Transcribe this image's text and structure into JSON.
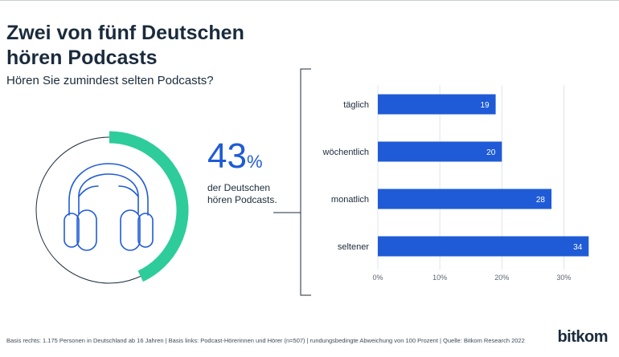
{
  "header": {
    "title": "Zwei von fünf Deutschen hören Podcasts",
    "subtitle": "Hören Sie zumindest selten Podcasts?"
  },
  "highlight": {
    "value": "43",
    "unit": "%",
    "text": "der Deutschen hören Podcasts.",
    "fraction": 0.43
  },
  "colors": {
    "accent": "#1f5bd6",
    "ring": "#2ecc9a",
    "ring_bg": "#1a2b3c"
  },
  "icon": "headphones-icon",
  "chart_data": {
    "type": "bar",
    "orientation": "horizontal",
    "categories": [
      "täglich",
      "wöchentlich",
      "monatlich",
      "seltener"
    ],
    "values": [
      19,
      20,
      28,
      34
    ],
    "xlim": [
      0,
      35
    ],
    "ticks": [
      0,
      10,
      20,
      30
    ],
    "tick_labels": [
      "0%",
      "10%",
      "20%",
      "30%"
    ],
    "grid": true
  },
  "footer": {
    "note": "Basis rechts: 1.175 Personen in Deutschland ab 16 Jahren | Basis links: Podcast-Hörerinnen und Hörer (n=507) | rundungsbedingte Abweichung von 100 Prozent | Quelle: Bitkom Research 2022",
    "logo": "bitkom"
  }
}
